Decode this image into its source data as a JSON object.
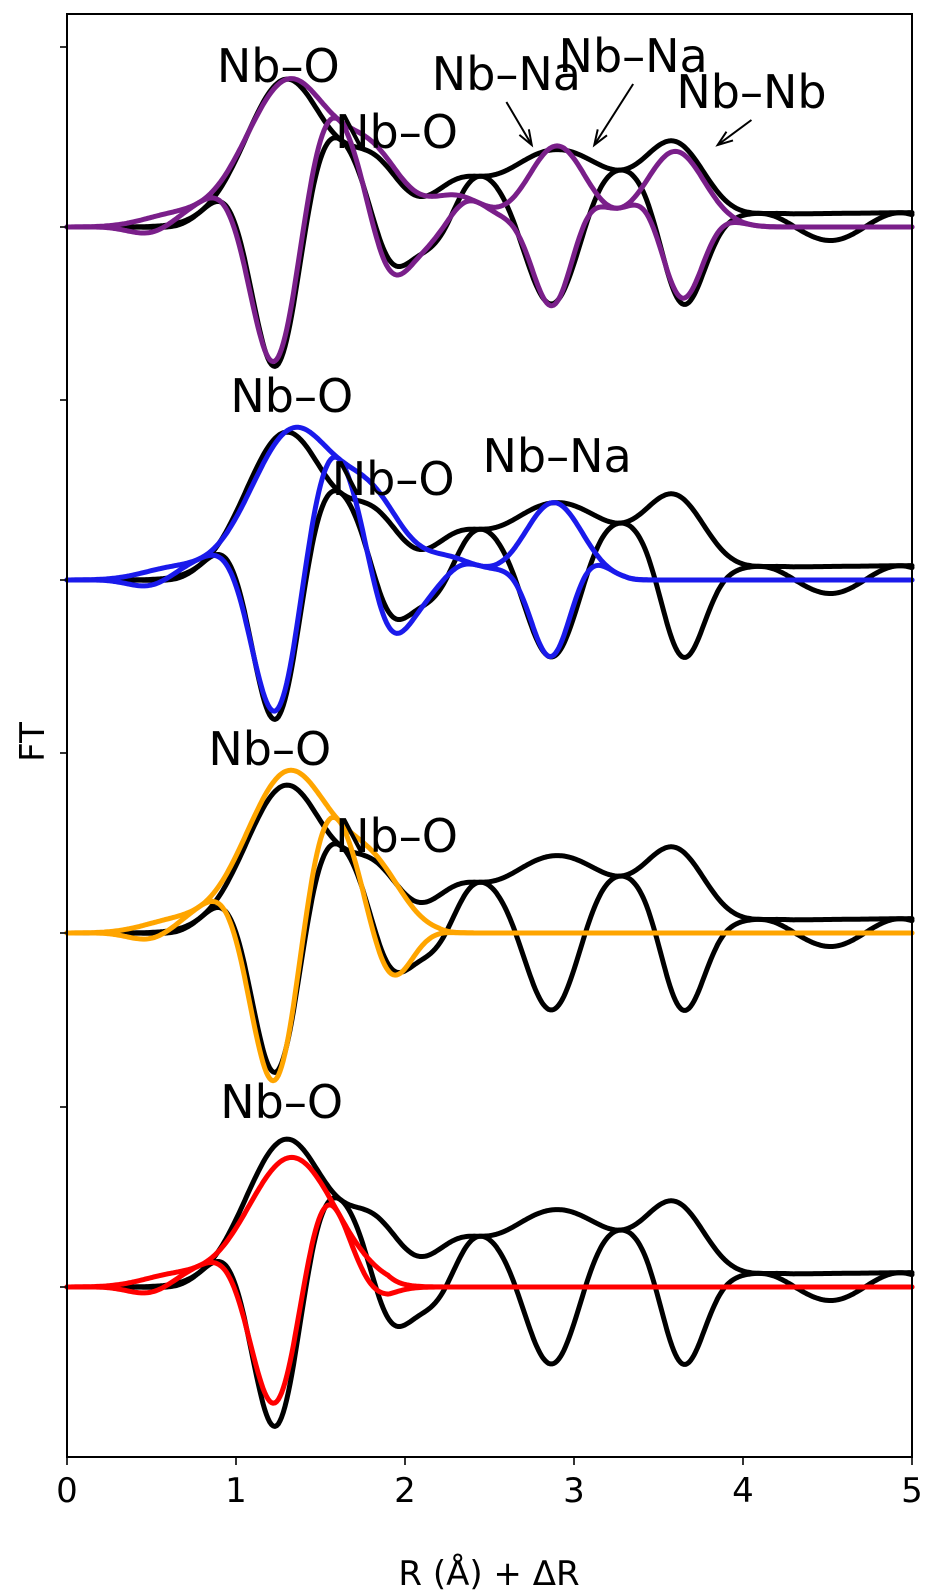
{
  "chart_data": {
    "type": "line",
    "xlabel": "R (Å) + ΔR",
    "ylabel": "FT",
    "xlim": [
      0,
      5
    ],
    "x_ticks": [
      0,
      1,
      2,
      3,
      4,
      5
    ],
    "x_tick_labels": [
      "0",
      "1",
      "2",
      "3",
      "4",
      "5"
    ],
    "grid": false,
    "legend": "none",
    "panels": [
      {
        "fit_color": "#7a1f8a",
        "annotations": [
          {
            "text": "Nb–O",
            "x": 1.25,
            "arrow": false
          },
          {
            "text": "Nb–O",
            "x": 1.95,
            "arrow": false
          },
          {
            "text": "Nb–Na",
            "x": 2.6,
            "arrow": true,
            "arrow_to_x": 2.75
          },
          {
            "text": "Nb–Na",
            "x": 3.35,
            "arrow": true,
            "arrow_to_x": 3.12
          },
          {
            "text": "Nb–Nb",
            "x": 4.05,
            "arrow": true,
            "arrow_to_x": 3.85
          }
        ],
        "peaks": [
          [
            1.32,
            0.82
          ],
          [
            1.82,
            0.33
          ],
          [
            2.3,
            0.17
          ],
          [
            2.9,
            0.45
          ],
          [
            3.6,
            0.42
          ]
        ],
        "fit_cutoff": 5.0
      },
      {
        "fit_color": "#1a1aeb",
        "annotations": [
          {
            "text": "Nb–O",
            "x": 1.33,
            "arrow": false
          },
          {
            "text": "Nb–O",
            "x": 1.93,
            "arrow": false
          },
          {
            "text": "Nb–Na",
            "x": 2.9,
            "arrow": false
          }
        ],
        "peaks": [
          [
            1.35,
            0.84
          ],
          [
            1.82,
            0.35
          ],
          [
            2.25,
            0.12
          ],
          [
            2.88,
            0.43
          ]
        ],
        "fit_cutoff": 3.3
      },
      {
        "fit_color": "#ffa500",
        "annotations": [
          {
            "text": "Nb–O",
            "x": 1.2,
            "arrow": false
          },
          {
            "text": "Nb–O",
            "x": 1.95,
            "arrow": false
          }
        ],
        "peaks": [
          [
            1.32,
            0.9
          ],
          [
            1.82,
            0.3
          ]
        ],
        "fit_cutoff": 2.2
      },
      {
        "fit_color": "#ff0000",
        "annotations": [
          {
            "text": "Nb–O",
            "x": 1.27,
            "arrow": false
          }
        ],
        "peaks": [
          [
            1.33,
            0.72
          ]
        ],
        "fit_cutoff": 1.9
      }
    ]
  }
}
